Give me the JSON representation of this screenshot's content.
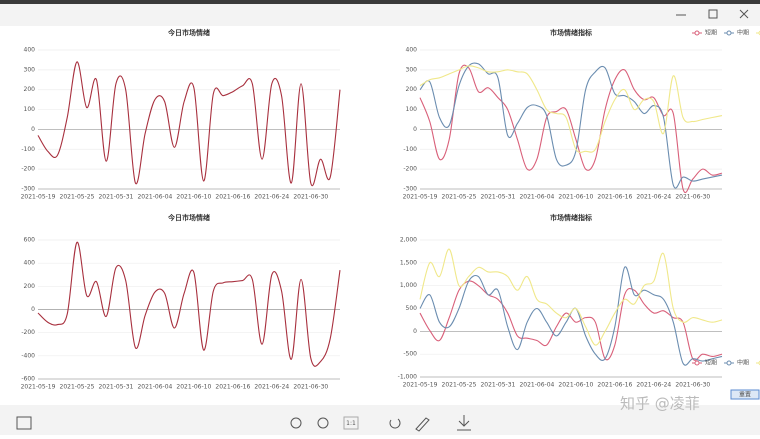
{
  "chart_data": [
    {
      "type": "line",
      "title": "今日市场情绪",
      "color": "#a8303e",
      "categories": [
        "2021-05-19",
        null,
        null,
        null,
        "2021-05-25",
        null,
        null,
        null,
        "2021-05-31",
        null,
        null,
        null,
        "2021-06-04",
        null,
        null,
        null,
        "2021-06-10",
        null,
        null,
        null,
        "2021-06-16",
        null,
        null,
        null,
        "2021-06-24",
        null,
        null,
        null,
        "2021-06-30",
        null,
        null,
        null
      ],
      "values": [
        -30,
        -110,
        -130,
        60,
        340,
        110,
        250,
        -160,
        230,
        200,
        -270,
        -20,
        150,
        140,
        -90,
        140,
        210,
        -260,
        180,
        170,
        190,
        220,
        230,
        -150,
        230,
        170,
        -270,
        230,
        -270,
        -150,
        -240,
        200
      ],
      "ylim": [
        -300,
        400
      ],
      "yticks": [
        -300,
        -200,
        -100,
        0,
        100,
        200,
        300,
        400
      ],
      "grid": true
    },
    {
      "type": "line",
      "title": "市场情绪指标",
      "legend": "top-right",
      "categories": [
        "2021-05-19",
        null,
        null,
        null,
        "2021-05-25",
        null,
        null,
        null,
        "2021-05-31",
        null,
        null,
        null,
        "2021-06-04",
        null,
        null,
        null,
        "2021-06-10",
        null,
        null,
        null,
        "2021-06-16",
        null,
        null,
        null,
        "2021-06-24",
        null,
        null,
        null,
        "2021-06-30",
        null,
        null,
        null
      ],
      "series": [
        {
          "name": "短期",
          "color": "#d9607a",
          "values": [
            160,
            40,
            -150,
            -50,
            280,
            310,
            190,
            210,
            160,
            100,
            -50,
            -200,
            -150,
            60,
            90,
            100,
            -50,
            -200,
            -150,
            100,
            250,
            300,
            200,
            150,
            160,
            70,
            80,
            -300,
            -250,
            -200,
            -230,
            -220
          ]
        },
        {
          "name": "中期",
          "color": "#6b8db0",
          "values": [
            200,
            240,
            60,
            20,
            220,
            320,
            330,
            280,
            260,
            -30,
            30,
            110,
            120,
            70,
            -150,
            -180,
            -110,
            200,
            290,
            310,
            180,
            170,
            140,
            80,
            120,
            60,
            -280,
            -240,
            -260,
            -250,
            -240,
            -230
          ]
        },
        {
          "name": "长期",
          "color": "#f0e88a",
          "values": [
            220,
            250,
            260,
            280,
            300,
            320,
            310,
            290,
            290,
            300,
            290,
            280,
            200,
            100,
            80,
            60,
            -100,
            -110,
            -100,
            40,
            150,
            200,
            100,
            150,
            140,
            -20,
            270,
            60,
            40,
            50,
            60,
            70
          ]
        }
      ],
      "ylim": [
        -300,
        400
      ],
      "yticks": [
        -300,
        -200,
        -100,
        0,
        100,
        200,
        300,
        400
      ],
      "grid": true
    },
    {
      "type": "line",
      "title": "今日市场情绪",
      "color": "#a8303e",
      "categories": [
        "2021-05-19",
        null,
        null,
        null,
        "2021-05-25",
        null,
        null,
        null,
        "2021-05-31",
        null,
        null,
        null,
        "2021-06-04",
        null,
        null,
        null,
        "2021-06-10",
        null,
        null,
        null,
        "2021-06-16",
        null,
        null,
        null,
        "2021-06-24",
        null,
        null,
        null,
        "2021-06-30",
        null,
        null,
        null
      ],
      "values": [
        -30,
        -110,
        -130,
        -40,
        580,
        120,
        240,
        -60,
        360,
        250,
        -330,
        -50,
        150,
        140,
        -160,
        140,
        320,
        -350,
        160,
        230,
        240,
        250,
        260,
        -300,
        300,
        160,
        -430,
        260,
        -420,
        -450,
        -250,
        340
      ],
      "ylim": [
        -600,
        600
      ],
      "yticks": [
        -600,
        -400,
        -200,
        0,
        200,
        400,
        600
      ],
      "grid": true
    },
    {
      "type": "line",
      "title": "市场情绪指标",
      "legend": "bottom-right",
      "categories": [
        "2021-05-19",
        null,
        null,
        null,
        "2021-05-25",
        null,
        null,
        null,
        "2021-05-31",
        null,
        null,
        null,
        "2021-06-04",
        null,
        null,
        null,
        "2021-06-10",
        null,
        null,
        null,
        "2021-06-16",
        null,
        null,
        null,
        "2021-06-24",
        null,
        null,
        null,
        "2021-06-30",
        null,
        null,
        null
      ],
      "series": [
        {
          "name": "短期",
          "color": "#d9607a",
          "values": [
            400,
            20,
            -200,
            300,
            900,
            1100,
            1000,
            800,
            700,
            400,
            -100,
            -150,
            -200,
            -300,
            100,
            400,
            200,
            300,
            200,
            -600,
            -300,
            800,
            900,
            600,
            400,
            450,
            300,
            200,
            -600,
            -500,
            -550,
            -500
          ]
        },
        {
          "name": "中期",
          "color": "#6b8db0",
          "values": [
            500,
            800,
            200,
            100,
            500,
            1100,
            1200,
            800,
            900,
            100,
            -400,
            200,
            500,
            200,
            -100,
            200,
            500,
            -100,
            -500,
            -600,
            100,
            1400,
            800,
            900,
            800,
            700,
            200,
            -700,
            -600,
            -650,
            -600,
            -550
          ]
        },
        {
          "name": "长期",
          "color": "#f0e88a",
          "values": [
            700,
            1500,
            1200,
            1800,
            1000,
            1200,
            1400,
            1300,
            1300,
            1200,
            900,
            1200,
            700,
            600,
            400,
            300,
            500,
            100,
            -300,
            0,
            400,
            700,
            600,
            1000,
            1100,
            1700,
            500,
            200,
            300,
            250,
            200,
            250
          ]
        }
      ],
      "ylim": [
        -1000,
        2000
      ],
      "yticks": [
        {
          "value": -1000,
          "label": "-1,000"
        },
        -500,
        0,
        500,
        {
          "value": 1000,
          "label": "1,000"
        },
        {
          "value": 1500,
          "label": "1,500"
        },
        {
          "value": 2000,
          "label": "2,000"
        }
      ],
      "grid": true
    }
  ],
  "toolbar": {
    "zoom_label": "1:1"
  },
  "reset_button": "重置",
  "watermark": "知乎 @凌菲"
}
